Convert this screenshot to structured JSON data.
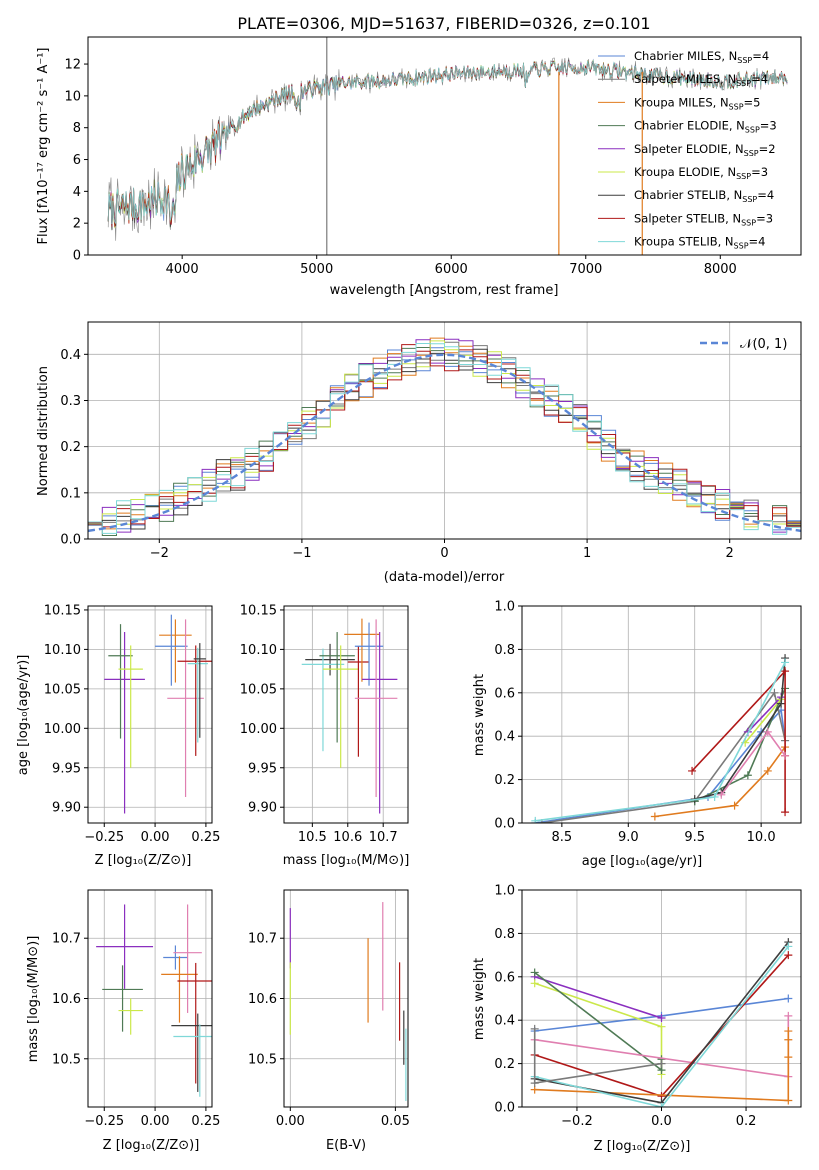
{
  "colors": {
    "chab_miles": "#5a86d6",
    "salp_miles": "#7a7a7a",
    "krou_miles": "#e07b1f",
    "chab_elodie": "#4f7a55",
    "salp_elodie": "#8a2fbf",
    "krou_elodie": "#cbe84a",
    "chab_stelib": "#3d3d3d",
    "salp_stelib": "#b01818",
    "krou_stelib": "#7fd8d8",
    "pink": "#e07fb0",
    "gauss": "#5a86d6"
  },
  "chart_data": [
    {
      "type": "line",
      "title": "PLATE=0306, MJD=51637, FIBERID=0326, z=0.101",
      "xlabel": "wavelength [Angstrom, rest frame]",
      "ylabel": "Flux [fλ10⁻¹⁷ erg cm⁻² s⁻¹ A⁻¹]",
      "xlim": [
        3300,
        8600
      ],
      "ylim": [
        0,
        13.7
      ],
      "xticks": [
        "4000",
        "5000",
        "6000",
        "7000",
        "8000"
      ],
      "yticks": [
        "0",
        "2",
        "4",
        "6",
        "8",
        "10",
        "12"
      ],
      "legend_position": "right",
      "continuum": {
        "x": [
          3450,
          3700,
          3900,
          4000,
          4200,
          4500,
          4800,
          5200,
          5600,
          6000,
          6500,
          7000,
          7500,
          8000,
          8500
        ],
        "y": [
          2.8,
          3.2,
          3.6,
          5.2,
          6.6,
          9.0,
          10.2,
          10.8,
          11.0,
          11.4,
          11.6,
          11.8,
          11.3,
          10.9,
          11.2
        ]
      },
      "series": [
        {
          "name": "Chabrier MILES, N",
          "sub": "SSP",
          "suffix": "=4",
          "color": "#5a86d6"
        },
        {
          "name": "Salpeter MILES, N",
          "sub": "SSP",
          "suffix": "=4",
          "color": "#7a7a7a"
        },
        {
          "name": "Kroupa MILES, N",
          "sub": "SSP",
          "suffix": "=5",
          "color": "#e07b1f"
        },
        {
          "name": "Chabrier ELODIE, N",
          "sub": "SSP",
          "suffix": "=3",
          "color": "#4f7a55"
        },
        {
          "name": "Salpeter ELODIE, N",
          "sub": "SSP",
          "suffix": "=2",
          "color": "#8a2fbf"
        },
        {
          "name": "Kroupa ELODIE, N",
          "sub": "SSP",
          "suffix": "=3",
          "color": "#cbe84a"
        },
        {
          "name": "Chabrier STELIB, N",
          "sub": "SSP",
          "suffix": "=4",
          "color": "#3d3d3d"
        },
        {
          "name": "Salpeter STELIB, N",
          "sub": "SSP",
          "suffix": "=3",
          "color": "#b01818"
        },
        {
          "name": "Kroupa STELIB, N",
          "sub": "SSP",
          "suffix": "=4",
          "color": "#7fd8d8"
        }
      ],
      "spikes": [
        {
          "x": 5075,
          "y0": 0,
          "y1": 13.7,
          "color": "#7a7a7a"
        },
        {
          "x": 6800,
          "y0": 0,
          "y1": 11.5,
          "color": "#e07b1f"
        },
        {
          "x": 7420,
          "y0": 0,
          "y1": 11.5,
          "color": "#e07b1f"
        }
      ]
    },
    {
      "type": "line",
      "xlabel": "(data-model)/error",
      "ylabel": "Normed distribution",
      "xlim": [
        -2.5,
        2.5
      ],
      "ylim": [
        0,
        0.47
      ],
      "xticks": [
        "−2",
        "−1",
        "0",
        "1",
        "2"
      ],
      "yticks": [
        "0.0",
        "0.1",
        "0.2",
        "0.3",
        "0.4"
      ],
      "gaussian_label": "𝒩(0, 1)",
      "bins": 50,
      "series_colors": [
        "#5a86d6",
        "#7a7a7a",
        "#e07b1f",
        "#4f7a55",
        "#8a2fbf",
        "#cbe84a",
        "#3d3d3d",
        "#b01818",
        "#7fd8d8"
      ]
    },
    {
      "type": "scatter",
      "xlabel": "Z [log₁₀(Z/Z⊙)]",
      "ylabel": "age  [log₁₀(age/yr)]",
      "xlim": [
        -0.33,
        0.28
      ],
      "ylim": [
        9.88,
        10.155
      ],
      "xticks": [
        "−0.25",
        "0.00",
        "0.25"
      ],
      "yticks": [
        "9.90",
        "9.95",
        "10.00",
        "10.05",
        "10.10",
        "10.15"
      ],
      "points": [
        {
          "x": -0.15,
          "y": 10.062,
          "xerr": 0.1,
          "yerr": [
            0.17,
            0.06
          ],
          "color": "#8a2fbf"
        },
        {
          "x": -0.17,
          "y": 10.092,
          "xerr": 0.06,
          "yerr": [
            0.105,
            0.04
          ],
          "color": "#4f7a55"
        },
        {
          "x": -0.12,
          "y": 10.075,
          "xerr": 0.06,
          "yerr": [
            0.125,
            0.03
          ],
          "color": "#cbe84a"
        },
        {
          "x": 0.1,
          "y": 10.118,
          "xerr": 0.08,
          "yerr": [
            0.06,
            0.02
          ],
          "color": "#e07b1f"
        },
        {
          "x": 0.08,
          "y": 10.104,
          "xerr": 0.08,
          "yerr": [
            0.05,
            0.04
          ],
          "color": "#5a86d6"
        },
        {
          "x": 0.15,
          "y": 10.038,
          "xerr": 0.09,
          "yerr": [
            0.125,
            0.1
          ],
          "color": "#e07fb0"
        },
        {
          "x": 0.2,
          "y": 10.085,
          "xerr": 0.09,
          "yerr": [
            0.12,
            0.02
          ],
          "color": "#b01818"
        },
        {
          "x": 0.21,
          "y": 10.082,
          "xerr": 0.05,
          "yerr": [
            0.1,
            0.02
          ],
          "color": "#7fd8d8"
        },
        {
          "x": 0.22,
          "y": 10.088,
          "xerr": 0.03,
          "yerr": [
            0.1,
            0.02
          ],
          "color": "#3d3d3d"
        }
      ]
    },
    {
      "type": "scatter",
      "xlabel": "mass [log₁₀(M/M⊙)]",
      "ylabel": "",
      "xlim": [
        10.42,
        10.77
      ],
      "ylim": [
        9.88,
        10.155
      ],
      "xticks": [
        "10.5",
        "10.6",
        "10.7"
      ],
      "yticks": [
        "9.90",
        "9.95",
        "10.00",
        "10.05",
        "10.10",
        "10.15"
      ],
      "points": [
        {
          "x": 10.55,
          "y": 10.087,
          "xerr": 0.07,
          "yerr": [
            0.02,
            0.02
          ],
          "color": "#3d3d3d"
        },
        {
          "x": 10.53,
          "y": 10.081,
          "xerr": 0.06,
          "yerr": [
            0.11,
            0.02
          ],
          "color": "#7fd8d8"
        },
        {
          "x": 10.57,
          "y": 10.092,
          "xerr": 0.05,
          "yerr": [
            0.11,
            0.03
          ],
          "color": "#4f7a55"
        },
        {
          "x": 10.58,
          "y": 10.075,
          "xerr": 0.05,
          "yerr": [
            0.125,
            0.03
          ],
          "color": "#cbe84a"
        },
        {
          "x": 10.63,
          "y": 10.084,
          "xerr": 0.03,
          "yerr": [
            0.12,
            0.02
          ],
          "color": "#b01818"
        },
        {
          "x": 10.64,
          "y": 10.119,
          "xerr": 0.05,
          "yerr": [
            0.06,
            0.02
          ],
          "color": "#e07b1f"
        },
        {
          "x": 10.66,
          "y": 10.104,
          "xerr": 0.04,
          "yerr": [
            0.05,
            0.03
          ],
          "color": "#5a86d6"
        },
        {
          "x": 10.69,
          "y": 10.062,
          "xerr": 0.05,
          "yerr": [
            0.17,
            0.06
          ],
          "color": "#8a2fbf"
        },
        {
          "x": 10.68,
          "y": 10.038,
          "xerr": 0.06,
          "yerr": [
            0.125,
            0.1
          ],
          "color": "#e07fb0"
        }
      ]
    },
    {
      "type": "line",
      "xlabel": "age  [log₁₀(age/yr)]",
      "ylabel": "mass weight",
      "xlim": [
        8.2,
        10.3
      ],
      "ylim": [
        0,
        1.0
      ],
      "xticks": [
        "8.5",
        "9.0",
        "9.5",
        "10.0"
      ],
      "yticks": [
        "0.0",
        "0.2",
        "0.4",
        "0.6",
        "0.8",
        "1.0"
      ],
      "series": [
        {
          "color": "#5a86d6",
          "x": [
            8.3,
            9.6,
            10.0,
            10.15,
            10.18
          ],
          "y": [
            0.0,
            0.12,
            0.42,
            0.52,
            0.38
          ]
        },
        {
          "color": "#7a7a7a",
          "x": [
            8.35,
            9.5,
            10.1,
            10.18
          ],
          "y": [
            0.0,
            0.1,
            0.6,
            0.38
          ]
        },
        {
          "color": "#e07b1f",
          "x": [
            9.2,
            9.8,
            10.05,
            10.18,
            10.18
          ],
          "y": [
            0.03,
            0.08,
            0.24,
            0.35,
            0.31
          ]
        },
        {
          "color": "#4f7a55",
          "x": [
            9.5,
            9.9,
            10.18
          ],
          "y": [
            0.1,
            0.22,
            0.62
          ]
        },
        {
          "color": "#8a2fbf",
          "x": [
            9.9,
            10.15
          ],
          "y": [
            0.42,
            0.58
          ]
        },
        {
          "color": "#cbe84a",
          "x": [
            9.88,
            10.15
          ],
          "y": [
            0.37,
            0.57
          ]
        },
        {
          "color": "#3d3d3d",
          "x": [
            9.5,
            9.7,
            10.15,
            10.18
          ],
          "y": [
            0.11,
            0.14,
            0.55,
            0.76
          ]
        },
        {
          "color": "#b01818",
          "x": [
            9.48,
            10.18,
            10.18
          ],
          "y": [
            0.24,
            0.7,
            0.05
          ]
        },
        {
          "color": "#7fd8d8",
          "x": [
            8.3,
            9.65,
            10.18
          ],
          "y": [
            0.01,
            0.12,
            0.74
          ]
        },
        {
          "color": "#e07fb0",
          "x": [
            9.7,
            10.05,
            10.18
          ],
          "y": [
            0.13,
            0.42,
            0.31
          ]
        }
      ]
    },
    {
      "type": "scatter",
      "xlabel": "Z [log₁₀(Z/Z⊙)]",
      "ylabel": "mass [log₁₀(M/M⊙)]",
      "xlim": [
        -0.33,
        0.28
      ],
      "ylim": [
        10.42,
        10.78
      ],
      "xticks": [
        "−0.25",
        "0.00",
        "0.25"
      ],
      "yticks": [
        "10.5",
        "10.6",
        "10.7"
      ],
      "points": [
        {
          "x": -0.15,
          "y": 10.686,
          "xerr": 0.14,
          "yerr": [
            0.07,
            0.07
          ],
          "color": "#8a2fbf"
        },
        {
          "x": -0.16,
          "y": 10.615,
          "xerr": 0.1,
          "yerr": [
            0.07,
            0.04
          ],
          "color": "#4f7a55"
        },
        {
          "x": -0.12,
          "y": 10.58,
          "xerr": 0.06,
          "yerr": [
            0.04,
            0.02
          ],
          "color": "#cbe84a"
        },
        {
          "x": 0.1,
          "y": 10.668,
          "xerr": 0.06,
          "yerr": [
            0.02,
            0.02
          ],
          "color": "#5a86d6"
        },
        {
          "x": 0.16,
          "y": 10.676,
          "xerr": 0.07,
          "yerr": [
            0.1,
            0.08
          ],
          "color": "#e07fb0"
        },
        {
          "x": 0.12,
          "y": 10.64,
          "xerr": 0.09,
          "yerr": [
            0.08,
            0.03
          ],
          "color": "#e07b1f"
        },
        {
          "x": 0.2,
          "y": 10.629,
          "xerr": 0.09,
          "yerr": [
            0.17,
            0.03
          ],
          "color": "#b01818"
        },
        {
          "x": 0.21,
          "y": 10.555,
          "xerr": 0.13,
          "yerr": [
            0.11,
            0.02
          ],
          "color": "#3d3d3d"
        },
        {
          "x": 0.22,
          "y": 10.537,
          "xerr": 0.13,
          "yerr": [
            0.1,
            0.02
          ],
          "color": "#7fd8d8"
        }
      ]
    },
    {
      "type": "scatter",
      "xlabel": "E(B-V)",
      "ylabel": "",
      "xlim": [
        -0.003,
        0.056
      ],
      "ylim": [
        10.42,
        10.78
      ],
      "xticks": [
        "0.00",
        "0.05"
      ],
      "yticks": [
        "10.5",
        "10.6",
        "10.7"
      ],
      "points": [
        {
          "x": 0.0,
          "y": 10.69,
          "yerr": [
            0.04,
            0.06
          ],
          "color": "#8a2fbf"
        },
        {
          "x": 0.0,
          "y": 10.6,
          "yerr": [
            0.06,
            0.06
          ],
          "color": "#cbe84a"
        },
        {
          "x": 0.037,
          "y": 10.63,
          "yerr": [
            0.07,
            0.07
          ],
          "color": "#e07b1f"
        },
        {
          "x": 0.044,
          "y": 10.66,
          "yerr": [
            0.08,
            0.1
          ],
          "color": "#e07fb0"
        },
        {
          "x": 0.052,
          "y": 10.6,
          "yerr": [
            0.07,
            0.06
          ],
          "color": "#b01818"
        },
        {
          "x": 0.054,
          "y": 10.53,
          "yerr": [
            0.04,
            0.05
          ],
          "color": "#3d3d3d"
        },
        {
          "x": 0.055,
          "y": 10.5,
          "yerr": [
            0.07,
            0.05
          ],
          "color": "#7fd8d8"
        }
      ]
    },
    {
      "type": "line",
      "xlabel": "Z [log₁₀(Z/Z⊙)]",
      "ylabel": "mass weight",
      "xlim": [
        -0.33,
        0.33
      ],
      "ylim": [
        0,
        1.0
      ],
      "xticks": [
        "−0.2",
        "0.0",
        "0.2"
      ],
      "yticks": [
        "0.0",
        "0.2",
        "0.4",
        "0.6",
        "0.8",
        "1.0"
      ],
      "series": [
        {
          "color": "#5a86d6",
          "x": [
            -0.3,
            0.0,
            0.3
          ],
          "y": [
            0.35,
            0.42,
            0.5
          ]
        },
        {
          "color": "#8a2fbf",
          "x": [
            -0.3,
            0.0
          ],
          "y": [
            0.6,
            0.41
          ]
        },
        {
          "color": "#cbe84a",
          "x": [
            -0.3,
            0.0,
            0.0
          ],
          "y": [
            0.57,
            0.37,
            0.15
          ]
        },
        {
          "color": "#4f7a55",
          "x": [
            -0.3,
            0.0,
            0.0
          ],
          "y": [
            0.62,
            0.17,
            0.22
          ]
        },
        {
          "color": "#e07fb0",
          "x": [
            -0.3,
            0.3,
            0.3
          ],
          "y": [
            0.31,
            0.14,
            0.42
          ]
        },
        {
          "color": "#b01818",
          "x": [
            -0.3,
            0.0,
            0.3
          ],
          "y": [
            0.24,
            0.05,
            0.7
          ]
        },
        {
          "color": "#e07b1f",
          "x": [
            -0.3,
            0.3,
            0.3,
            0.3,
            0.3
          ],
          "y": [
            0.08,
            0.03,
            0.23,
            0.31,
            0.35
          ]
        },
        {
          "color": "#3d3d3d",
          "x": [
            -0.3,
            0.0,
            0.3
          ],
          "y": [
            0.13,
            0.02,
            0.76
          ]
        },
        {
          "color": "#7fd8d8",
          "x": [
            -0.3,
            0.0,
            0.3
          ],
          "y": [
            0.14,
            0.0,
            0.74
          ]
        },
        {
          "color": "#7a7a7a",
          "x": [
            -0.3,
            -0.3,
            0.0
          ],
          "y": [
            0.36,
            0.11,
            0.2
          ]
        }
      ]
    }
  ]
}
